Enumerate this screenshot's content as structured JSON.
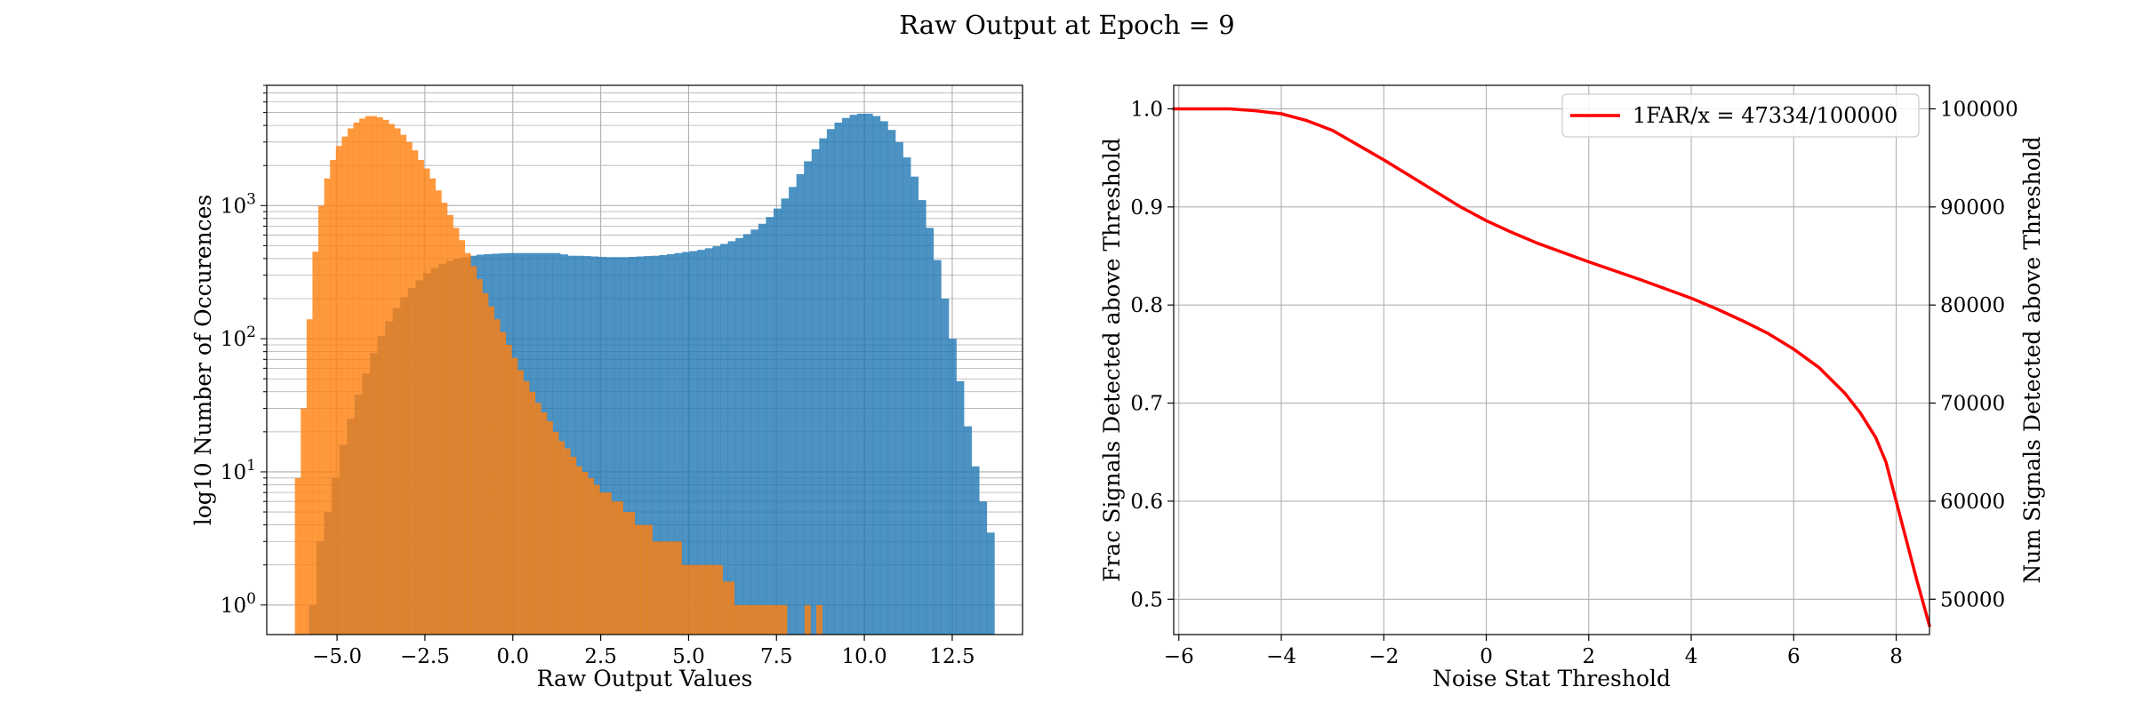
{
  "figure": {
    "title": "Raw Output at Epoch = 9"
  },
  "chart_data": [
    {
      "type": "histogram",
      "scale_y": "log",
      "xlabel": "Raw Output Values",
      "ylabel": "log10 Number of Occurences",
      "xlim": [
        -7.0,
        14.5
      ],
      "ylim": [
        0.6,
        8000
      ],
      "grid": true,
      "legend": "none",
      "xticks": [
        {
          "value": -5.0,
          "label": "−5.0"
        },
        {
          "value": -2.5,
          "label": "−2.5"
        },
        {
          "value": 0.0,
          "label": "0.0"
        },
        {
          "value": 2.5,
          "label": "2.5"
        },
        {
          "value": 5.0,
          "label": "5.0"
        },
        {
          "value": 7.5,
          "label": "7.5"
        },
        {
          "value": 10.0,
          "label": "10.0"
        },
        {
          "value": 12.5,
          "label": "12.5"
        }
      ],
      "yticks": [
        {
          "value": 1,
          "base": "10",
          "exp": "0"
        },
        {
          "value": 10,
          "base": "10",
          "exp": "1"
        },
        {
          "value": 100,
          "base": "10",
          "exp": "2"
        },
        {
          "value": 1000,
          "base": "10",
          "exp": "3"
        }
      ],
      "series": [
        {
          "color": "#1f77b4",
          "opacity": 0.8,
          "bin_range": [
            -5.8,
            13.7
          ],
          "counts": [
            1,
            3,
            5,
            9,
            16,
            25,
            38,
            55,
            78,
            105,
            135,
            170,
            205,
            240,
            275,
            310,
            340,
            365,
            385,
            400,
            410,
            420,
            428,
            432,
            435,
            438,
            440,
            440,
            440,
            440,
            440,
            440,
            440,
            430,
            420,
            420,
            418,
            415,
            412,
            410,
            410,
            410,
            412,
            415,
            418,
            420,
            425,
            432,
            440,
            448,
            455,
            465,
            478,
            495,
            515,
            540,
            570,
            610,
            660,
            730,
            820,
            950,
            1130,
            1380,
            1720,
            2150,
            2650,
            3200,
            3750,
            4200,
            4550,
            4800,
            4900,
            4900,
            4700,
            4300,
            3700,
            3000,
            2300,
            1650,
            1100,
            680,
            390,
            200,
            100,
            48,
            22,
            11,
            6,
            3.5
          ]
        },
        {
          "color": "#ff7f0e",
          "opacity": 0.8,
          "bin_range": [
            -6.2,
            8.8
          ],
          "counts": [
            9,
            30,
            140,
            450,
            1000,
            1600,
            2200,
            2800,
            3300,
            3800,
            4200,
            4500,
            4700,
            4700,
            4600,
            4400,
            4100,
            3800,
            3400,
            3000,
            2600,
            2200,
            1900,
            1600,
            1300,
            1050,
            850,
            680,
            550,
            440,
            350,
            280,
            220,
            175,
            140,
            112,
            90,
            72,
            58,
            48,
            40,
            33,
            28,
            24,
            20,
            17,
            15,
            13,
            11,
            10,
            9,
            8,
            7,
            7,
            6,
            6,
            5,
            5,
            4,
            4,
            4,
            3,
            3,
            3,
            3,
            3,
            2,
            2,
            2,
            2,
            2,
            2,
            2,
            1.5,
            1.5,
            1,
            1,
            1,
            1,
            1,
            1,
            1,
            1,
            1,
            0,
            0,
            0,
            1,
            0,
            1
          ]
        }
      ]
    },
    {
      "type": "line",
      "xlabel": "Noise Stat Threshold",
      "ylabel": "Frac Signals Detected above Threshold",
      "ylabel_right": "Num Signals Detected above Threshold",
      "xlim": [
        -6.1,
        8.65
      ],
      "ylim": [
        0.464,
        1.024
      ],
      "grid": true,
      "legend": "top-right",
      "xticks": [
        {
          "value": -6,
          "label": "−6"
        },
        {
          "value": -4,
          "label": "−4"
        },
        {
          "value": -2,
          "label": "−2"
        },
        {
          "value": 0,
          "label": "0"
        },
        {
          "value": 2,
          "label": "2"
        },
        {
          "value": 4,
          "label": "4"
        },
        {
          "value": 6,
          "label": "6"
        },
        {
          "value": 8,
          "label": "8"
        }
      ],
      "yticks": [
        {
          "value": 0.5,
          "label": "0.5"
        },
        {
          "value": 0.6,
          "label": "0.6"
        },
        {
          "value": 0.7,
          "label": "0.7"
        },
        {
          "value": 0.8,
          "label": "0.8"
        },
        {
          "value": 0.9,
          "label": "0.9"
        },
        {
          "value": 1.0,
          "label": "1.0"
        }
      ],
      "yticks_right": [
        {
          "value": 0.5,
          "label": "50000"
        },
        {
          "value": 0.6,
          "label": "60000"
        },
        {
          "value": 0.7,
          "label": "70000"
        },
        {
          "value": 0.8,
          "label": "80000"
        },
        {
          "value": 0.9,
          "label": "90000"
        },
        {
          "value": 1.0,
          "label": "100000"
        }
      ],
      "series": [
        {
          "name": "1FAR/x = 47334/100000",
          "color": "#ff0000",
          "x": [
            -6.1,
            -5,
            -4.5,
            -4,
            -3.5,
            -3,
            -2.5,
            -2,
            -1.5,
            -1,
            -0.5,
            0,
            0.5,
            1,
            2,
            3,
            4,
            4.5,
            5,
            5.5,
            6,
            6.5,
            7,
            7.3,
            7.6,
            7.8,
            8.0,
            8.2,
            8.4,
            8.65
          ],
          "y": [
            1.0,
            1.0,
            0.998,
            0.995,
            0.988,
            0.978,
            0.963,
            0.948,
            0.932,
            0.916,
            0.9,
            0.886,
            0.874,
            0.863,
            0.844,
            0.826,
            0.807,
            0.796,
            0.784,
            0.771,
            0.755,
            0.736,
            0.71,
            0.69,
            0.665,
            0.64,
            0.6,
            0.56,
            0.52,
            0.473
          ]
        }
      ]
    }
  ]
}
